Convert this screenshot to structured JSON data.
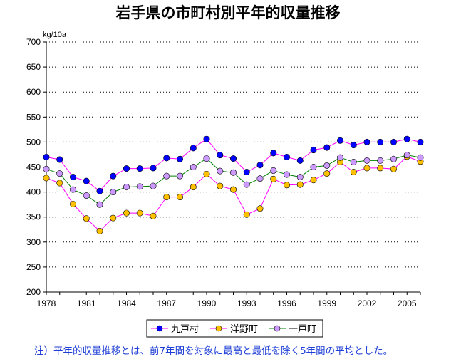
{
  "chart_data": {
    "type": "line",
    "title": "岩手県の市町村別平年的収量推移",
    "ylabel": "kg/10a",
    "xlabel": "",
    "ylim": [
      200,
      700
    ],
    "yticks": [
      200,
      250,
      300,
      350,
      400,
      450,
      500,
      550,
      600,
      650,
      700
    ],
    "x": [
      1978,
      1979,
      1980,
      1981,
      1982,
      1983,
      1984,
      1985,
      1986,
      1987,
      1988,
      1989,
      1990,
      1991,
      1992,
      1993,
      1994,
      1995,
      1996,
      1997,
      1998,
      1999,
      2000,
      2001,
      2002,
      2003,
      2004,
      2005,
      2006
    ],
    "xtick_labels": [
      "1978",
      "1981",
      "1984",
      "1987",
      "1990",
      "1993",
      "1996",
      "1999",
      "2002",
      "2005"
    ],
    "xtick_values": [
      1978,
      1981,
      1984,
      1987,
      1990,
      1993,
      1996,
      1999,
      2002,
      2005
    ],
    "grid": "horizontal dotted",
    "legend_position": "bottom",
    "series": [
      {
        "name": "九戸村",
        "line_color": "#ff00ff",
        "marker_color": "#0000ff",
        "values": [
          470,
          465,
          430,
          422,
          402,
          432,
          447,
          447,
          448,
          468,
          466,
          488,
          506,
          474,
          467,
          440,
          454,
          478,
          470,
          463,
          484,
          489,
          503,
          494,
          500,
          500,
          500,
          506,
          500
        ]
      },
      {
        "name": "洋野町",
        "line_color": "#ff00ff",
        "marker_color": "#ffc000",
        "values": [
          428,
          418,
          376,
          347,
          322,
          348,
          358,
          358,
          352,
          390,
          390,
          410,
          436,
          412,
          405,
          355,
          367,
          426,
          414,
          415,
          424,
          437,
          460,
          440,
          448,
          448,
          446,
          471,
          461
        ]
      },
      {
        "name": "一戸町",
        "line_color": "#008000",
        "marker_color": "#cc99ff",
        "values": [
          446,
          437,
          405,
          393,
          375,
          400,
          410,
          411,
          412,
          432,
          432,
          450,
          467,
          442,
          439,
          415,
          427,
          443,
          435,
          430,
          450,
          453,
          469,
          460,
          463,
          463,
          466,
          474,
          469
        ]
      }
    ]
  },
  "note": "注）平年的収量推移とは、前7年間を対象に最高と最低を除く5年間の平均とした。"
}
